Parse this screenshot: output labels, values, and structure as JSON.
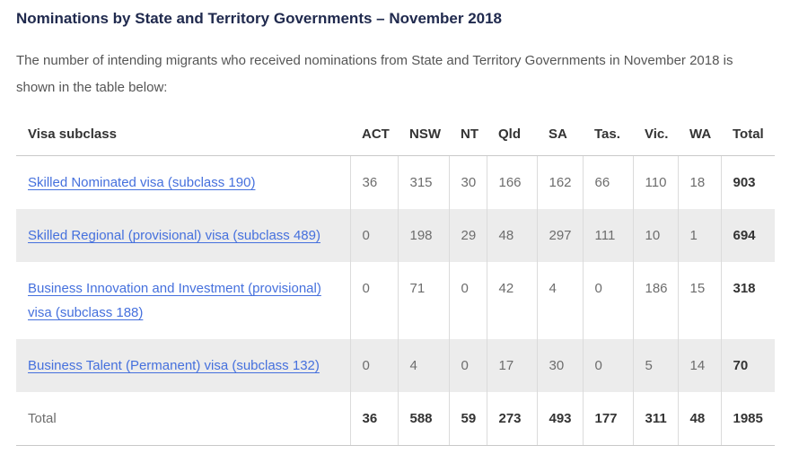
{
  "page": {
    "title": "Nominations by State and Territory Governments – November 2018",
    "intro": "The number of intending migrants who received nominations from State and Territory Governments in November 2018 is shown in the table below:"
  },
  "table": {
    "columns": [
      "Visa subclass",
      "ACT",
      "NSW",
      "NT",
      "Qld",
      "SA",
      "Tas.",
      "Vic.",
      "WA",
      "Total"
    ],
    "rows": [
      {
        "label": "Skilled Nominated visa (subclass 190)",
        "is_link": true,
        "values": [
          "36",
          "315",
          "30",
          "166",
          "162",
          "66",
          "110",
          "18"
        ],
        "total": "903"
      },
      {
        "label": "Skilled Regional (provisional) visa (subclass 489)",
        "is_link": true,
        "values": [
          "0",
          "198",
          "29",
          "48",
          "297",
          "111",
          "10",
          "1"
        ],
        "total": "694"
      },
      {
        "label": "Business Innovation and Investment (provisional) visa (subclass 188)",
        "is_link": true,
        "values": [
          "0",
          "71",
          "0",
          "42",
          "4",
          "0",
          "186",
          "15"
        ],
        "total": "318"
      },
      {
        "label": "Business Talent (Permanent) visa (subclass 132)",
        "is_link": true,
        "values": [
          "0",
          "4",
          "0",
          "17",
          "30",
          "0",
          "5",
          "14"
        ],
        "total": "70"
      }
    ],
    "total_row": {
      "label": "Total",
      "values": [
        "36",
        "588",
        "59",
        "273",
        "493",
        "177",
        "311",
        "48"
      ],
      "total": "1985"
    }
  },
  "colors": {
    "title": "#202a4e",
    "body_text": "#555555",
    "header_text": "#333333",
    "value_text": "#6d6d6d",
    "strong_text": "#333333",
    "link": "#4570dd",
    "alt_row_bg": "#ececec",
    "border": "#c9c9c9",
    "cell_divider": "#dbdbdb"
  }
}
